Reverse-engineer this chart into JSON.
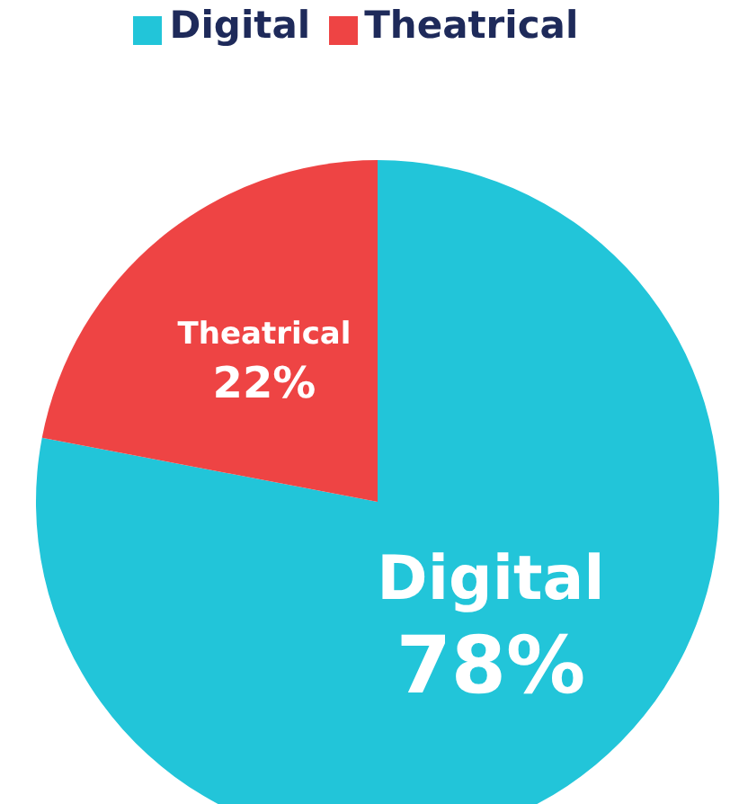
{
  "chart_data": {
    "type": "pie",
    "categories": [
      "Digital",
      "Theatrical"
    ],
    "values": [
      78,
      22
    ],
    "colors": [
      "#22c5d9",
      "#ee4444"
    ],
    "value_labels": [
      "78%",
      "22%"
    ],
    "legend": "top"
  }
}
